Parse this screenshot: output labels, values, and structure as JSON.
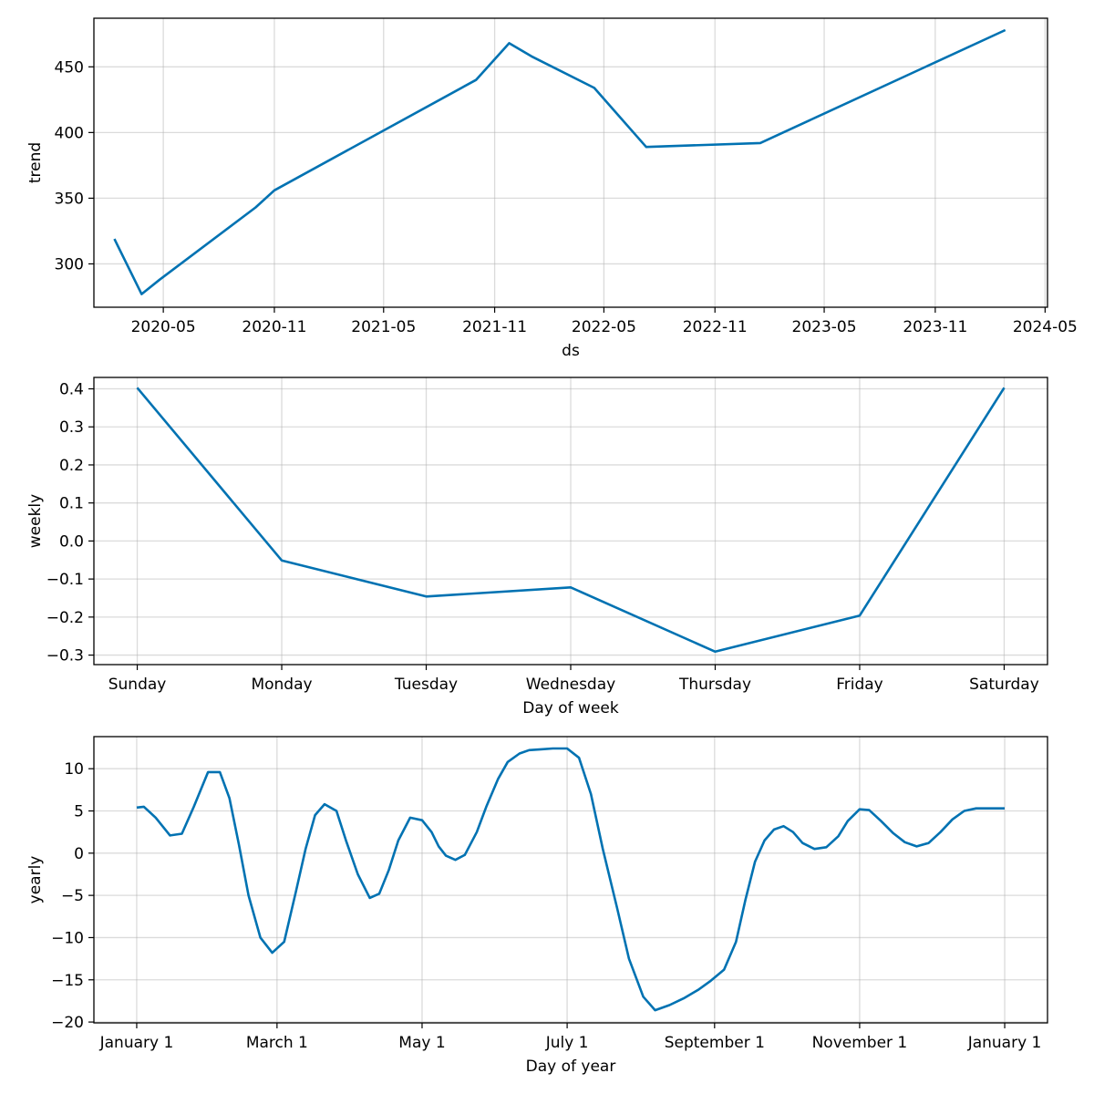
{
  "chart_data": [
    {
      "type": "line",
      "xlabel": "ds",
      "ylabel": "trend",
      "grid": true,
      "line_color": "#0072B2",
      "ylim": [
        267,
        487
      ],
      "xlim": [
        "2020-01-07",
        "2024-05-05"
      ],
      "x_ticks": [
        {
          "date": "2020-05-01",
          "label": "2020-05"
        },
        {
          "date": "2020-11-01",
          "label": "2020-11"
        },
        {
          "date": "2021-05-01",
          "label": "2021-05"
        },
        {
          "date": "2021-11-01",
          "label": "2021-11"
        },
        {
          "date": "2022-05-01",
          "label": "2022-05"
        },
        {
          "date": "2022-11-01",
          "label": "2022-11"
        },
        {
          "date": "2023-05-01",
          "label": "2023-05"
        },
        {
          "date": "2023-11-01",
          "label": "2023-11"
        },
        {
          "date": "2024-05-01",
          "label": "2024-05"
        }
      ],
      "y_ticks": [
        300,
        350,
        400,
        450
      ],
      "x": [
        "2020-02-10",
        "2020-03-26",
        "2020-04-25",
        "2020-10-01",
        "2020-11-01",
        "2021-10-01",
        "2021-11-25",
        "2022-01-01",
        "2022-04-15",
        "2022-07-10",
        "2023-01-15",
        "2024-02-25"
      ],
      "y": [
        319,
        277,
        288,
        343,
        356,
        440,
        468,
        458,
        434,
        389,
        392,
        478
      ]
    },
    {
      "type": "line",
      "xlabel": "Day of week",
      "ylabel": "weekly",
      "grid": true,
      "line_color": "#0072B2",
      "ylim": [
        -0.325,
        0.43
      ],
      "categories": [
        "Sunday",
        "Monday",
        "Tuesday",
        "Wednesday",
        "Thursday",
        "Friday",
        "Saturday"
      ],
      "values": [
        0.403,
        -0.051,
        -0.146,
        -0.122,
        -0.291,
        -0.196,
        0.403
      ],
      "y_ticks": [
        -0.3,
        -0.2,
        -0.1,
        0.0,
        0.1,
        0.2,
        0.3,
        0.4
      ],
      "y_tick_labels": [
        "−0.3",
        "−0.2",
        "−0.1",
        "0.0",
        "0.1",
        "0.2",
        "0.3",
        "0.4"
      ]
    },
    {
      "type": "line",
      "xlabel": "Day of year",
      "ylabel": "yearly",
      "grid": true,
      "line_color": "#0072B2",
      "xlim": [
        -18,
        383
      ],
      "ylim": [
        -20.1,
        13.8
      ],
      "x_ticks": [
        {
          "day": 0,
          "label": "January 1"
        },
        {
          "day": 59,
          "label": "March 1"
        },
        {
          "day": 120,
          "label": "May 1"
        },
        {
          "day": 181,
          "label": "July 1"
        },
        {
          "day": 243,
          "label": "September 1"
        },
        {
          "day": 304,
          "label": "November 1"
        },
        {
          "day": 365,
          "label": "January 1"
        }
      ],
      "y_ticks": [
        -20,
        -15,
        -10,
        -5,
        0,
        5,
        10
      ],
      "y_tick_labels": [
        "−20",
        "−15",
        "−10",
        "−5",
        "0",
        "5",
        "10"
      ],
      "x": [
        0,
        3,
        8,
        14,
        19,
        24,
        30,
        35,
        39,
        43,
        47,
        52,
        57,
        62,
        67,
        71,
        75,
        79,
        84,
        88,
        93,
        98,
        102,
        106,
        110,
        115,
        120,
        124,
        127,
        130,
        134,
        138,
        143,
        147,
        152,
        156,
        161,
        165,
        170,
        175,
        181,
        186,
        191,
        196,
        202,
        207,
        213,
        218,
        224,
        230,
        236,
        241,
        247,
        252,
        256,
        260,
        264,
        268,
        272,
        276,
        280,
        285,
        290,
        295,
        299,
        304,
        308,
        313,
        318,
        323,
        328,
        333,
        338,
        343,
        348,
        353,
        358,
        365
      ],
      "y": [
        5.4,
        5.5,
        4.2,
        2.1,
        2.3,
        5.5,
        9.6,
        9.6,
        6.5,
        1.0,
        -5.0,
        -10.0,
        -11.8,
        -10.5,
        -4.5,
        0.5,
        4.5,
        5.8,
        5.0,
        1.5,
        -2.5,
        -5.3,
        -4.8,
        -2.0,
        1.5,
        4.2,
        3.9,
        2.5,
        0.8,
        -0.3,
        -0.8,
        -0.2,
        2.5,
        5.5,
        8.8,
        10.8,
        11.8,
        12.2,
        12.3,
        12.4,
        12.4,
        11.3,
        7.0,
        0.5,
        -6.5,
        -12.5,
        -17.0,
        -18.6,
        -18.0,
        -17.2,
        -16.2,
        -15.2,
        -13.8,
        -10.5,
        -5.5,
        -1.0,
        1.5,
        2.8,
        3.2,
        2.5,
        1.2,
        0.5,
        0.7,
        2.0,
        3.8,
        5.2,
        5.1,
        3.8,
        2.4,
        1.3,
        0.8,
        1.2,
        2.5,
        4.0,
        5.0,
        5.3,
        5.3,
        5.3
      ]
    }
  ]
}
